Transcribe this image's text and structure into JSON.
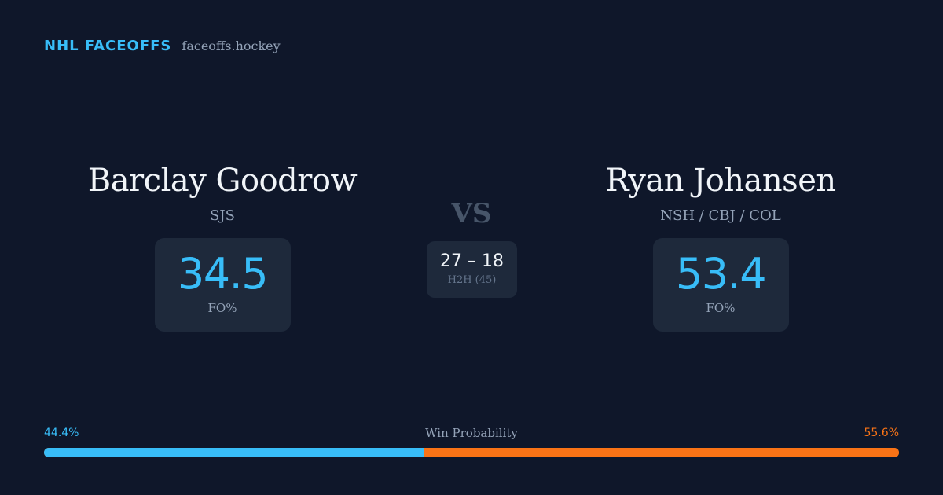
{
  "brand": {
    "name": "NHL FACEOFFS",
    "domain": "faceoffs.hockey"
  },
  "player1": {
    "name": "Barclay Goodrow",
    "team": "SJS",
    "stat_value": "34.5",
    "stat_label": "FO%"
  },
  "player2": {
    "name": "Ryan Johansen",
    "team": "NSH / CBJ / COL",
    "stat_value": "53.4",
    "stat_label": "FO%"
  },
  "versus": {
    "label": "VS",
    "h2h_score": "27 – 18",
    "h2h_label": "H2H (45)"
  },
  "win_probability": {
    "title": "Win Probability",
    "player1_label": "44.4%",
    "player2_label": "55.6%",
    "player1_value": 44.4,
    "player2_value": 55.6
  },
  "colors": {
    "background": "#0f172a",
    "card": "#1e293b",
    "accent_blue": "#38bdf8",
    "accent_orange": "#f97316",
    "muted_text": "#94a3b8"
  }
}
